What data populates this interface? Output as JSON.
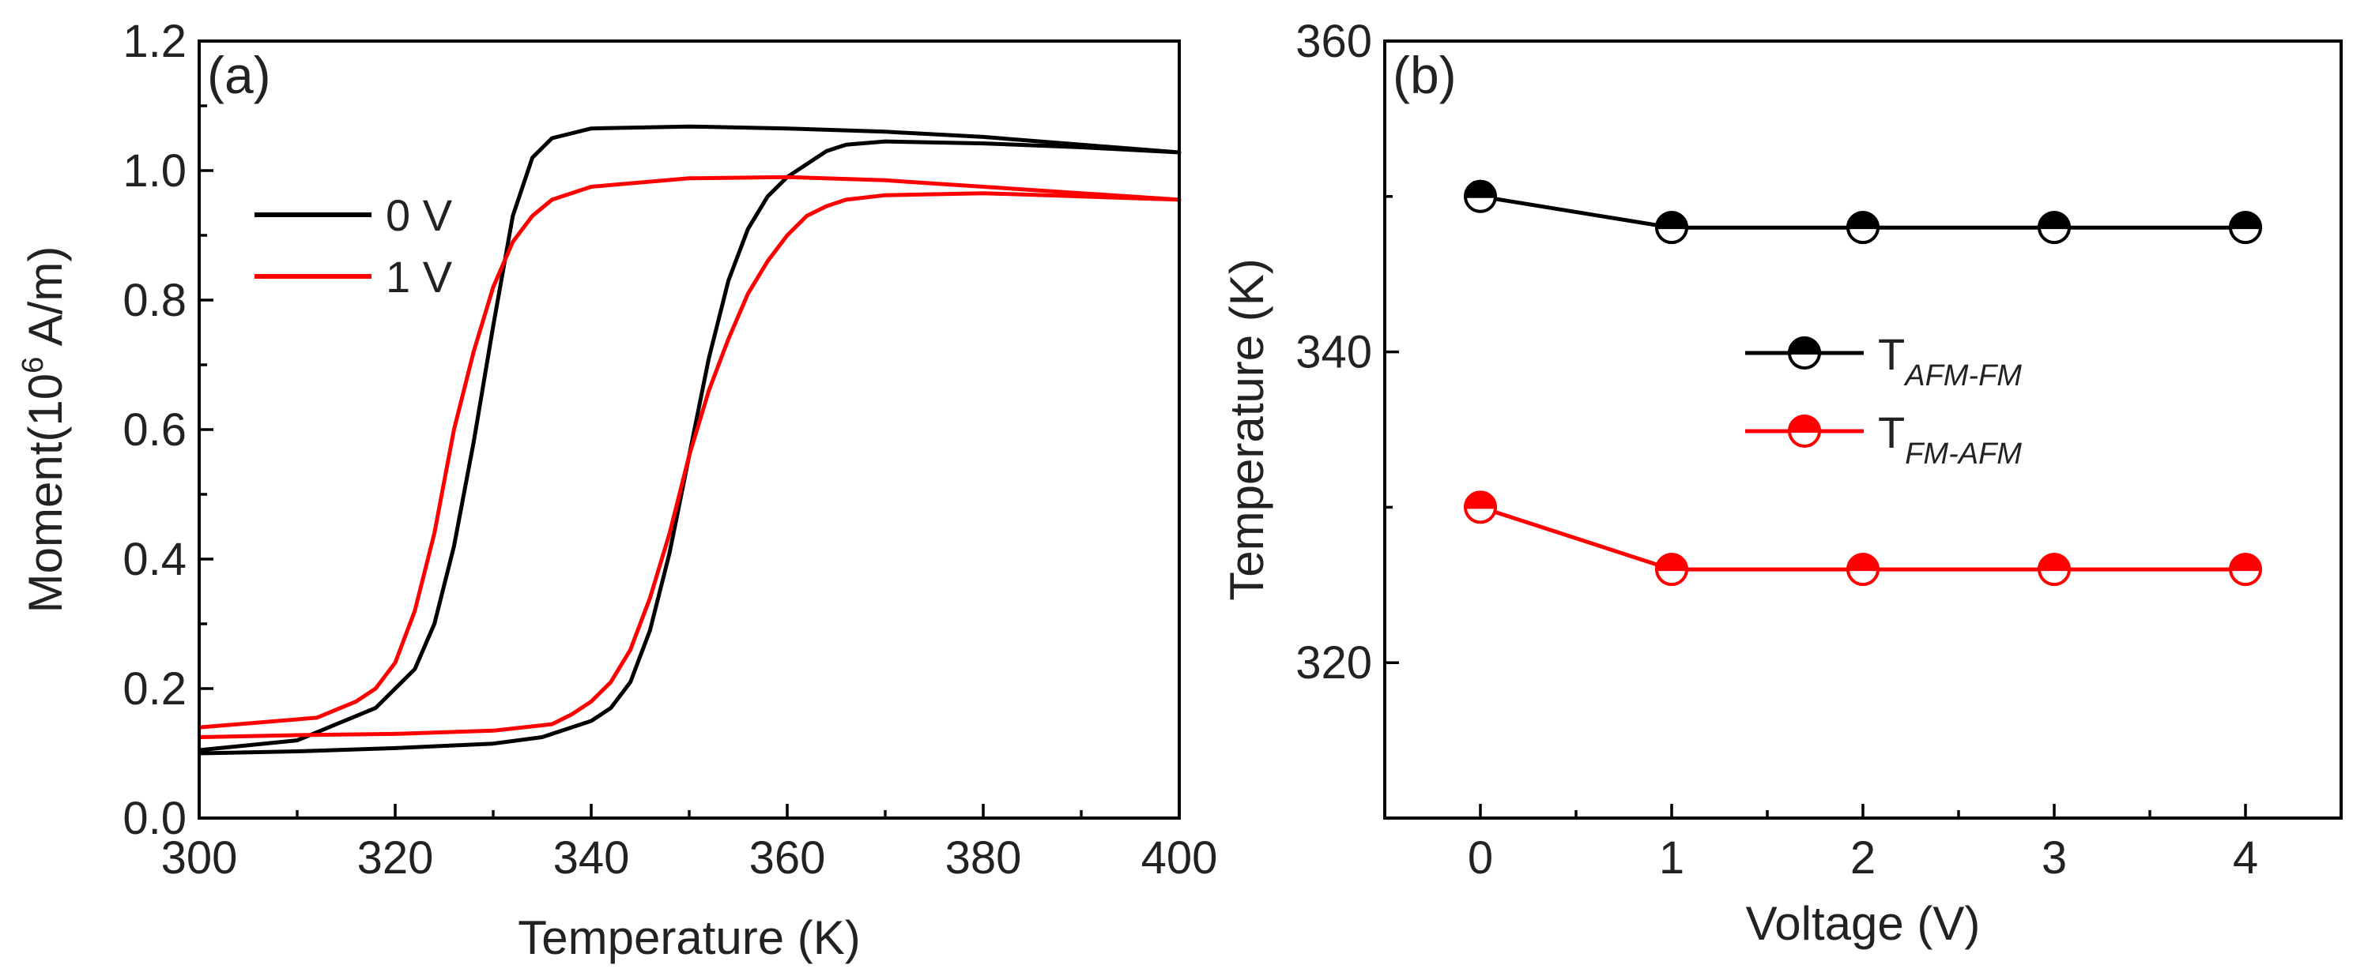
{
  "chart_data": [
    {
      "panel": "(a)",
      "type": "line",
      "title": "",
      "xlabel": "Temperature (K)",
      "ylabel_main": "Moment(10",
      "ylabel_exp": "6",
      "ylabel_unit": " A/m)",
      "xlim": [
        300,
        400
      ],
      "ylim": [
        0.0,
        1.2
      ],
      "xticks": [
        300,
        320,
        340,
        360,
        380,
        400
      ],
      "xtick_labels": [
        "300",
        "320",
        "340",
        "360",
        "380",
        "400"
      ],
      "yticks": [
        0.0,
        0.2,
        0.4,
        0.6,
        0.8,
        1.0,
        1.2
      ],
      "ytick_labels": [
        "0.0",
        "0.2",
        "0.4",
        "0.6",
        "0.8",
        "1.0",
        "1.2"
      ],
      "legend_position": "upper-left",
      "series": [
        {
          "name": "0 V",
          "color": "#000000",
          "x": [
            300,
            310,
            318,
            322,
            324,
            326,
            328,
            330,
            332,
            334,
            336,
            340,
            350,
            360,
            370,
            380,
            390,
            400,
            390,
            380,
            370,
            366,
            364,
            362,
            360,
            358,
            356,
            354,
            352,
            350,
            348,
            346,
            344,
            342,
            340,
            335,
            330,
            320,
            310,
            300
          ],
          "y": [
            0.105,
            0.12,
            0.17,
            0.23,
            0.3,
            0.42,
            0.58,
            0.76,
            0.93,
            1.02,
            1.05,
            1.065,
            1.068,
            1.065,
            1.06,
            1.052,
            1.04,
            1.028,
            1.036,
            1.042,
            1.045,
            1.04,
            1.03,
            1.01,
            0.99,
            0.96,
            0.91,
            0.83,
            0.71,
            0.56,
            0.41,
            0.29,
            0.21,
            0.17,
            0.15,
            0.125,
            0.115,
            0.108,
            0.103,
            0.1
          ]
        },
        {
          "name": "1 V",
          "color": "#ff0000",
          "x": [
            300,
            312,
            316,
            318,
            320,
            322,
            324,
            326,
            328,
            330,
            332,
            334,
            336,
            340,
            350,
            360,
            370,
            380,
            390,
            400,
            390,
            380,
            370,
            366,
            364,
            362,
            360,
            358,
            356,
            354,
            352,
            350,
            348,
            346,
            344,
            342,
            340,
            338,
            336,
            330,
            320,
            310,
            300
          ],
          "y": [
            0.14,
            0.155,
            0.18,
            0.2,
            0.24,
            0.32,
            0.44,
            0.6,
            0.72,
            0.82,
            0.89,
            0.93,
            0.955,
            0.975,
            0.988,
            0.99,
            0.985,
            0.975,
            0.965,
            0.955,
            0.96,
            0.965,
            0.962,
            0.955,
            0.945,
            0.93,
            0.9,
            0.86,
            0.81,
            0.74,
            0.66,
            0.56,
            0.44,
            0.34,
            0.26,
            0.21,
            0.18,
            0.16,
            0.145,
            0.135,
            0.13,
            0.128,
            0.125
          ]
        }
      ]
    },
    {
      "panel": "(b)",
      "type": "line",
      "title": "",
      "xlabel": "Voltage (V)",
      "ylabel": "Temperature (K)",
      "xlim": [
        -0.5,
        4.5
      ],
      "ylim": [
        310,
        360
      ],
      "xticks": [
        0,
        1,
        2,
        3,
        4
      ],
      "xtick_labels": [
        "0",
        "1",
        "2",
        "3",
        "4"
      ],
      "yticks": [
        320,
        340,
        360
      ],
      "ytick_labels": [
        "320",
        "340",
        "360"
      ],
      "legend_position": "center-right",
      "series": [
        {
          "name": "T",
          "subscript": "AFM-FM",
          "color": "#000000",
          "marker": "half-filled-circle",
          "x": [
            0,
            1,
            2,
            3,
            4
          ],
          "y": [
            350,
            348,
            348,
            348,
            348
          ]
        },
        {
          "name": "T",
          "subscript": "FM-AFM",
          "color": "#ff0000",
          "marker": "half-filled-circle",
          "x": [
            0,
            1,
            2,
            3,
            4
          ],
          "y": [
            330,
            326,
            326,
            326,
            326
          ]
        }
      ]
    }
  ]
}
